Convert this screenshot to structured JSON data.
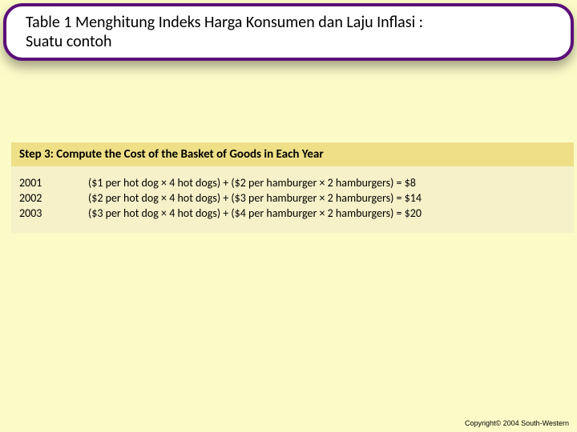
{
  "title": {
    "line1": "Table 1 Menghitung Indeks Harga Konsumen dan Laju Inflasi :",
    "line2": "Suatu contoh"
  },
  "colors": {
    "page_bg": "#fcfbc8",
    "title_border": "#5a1079",
    "title_bg": "#ffffff",
    "step_bg": "#efe088",
    "calc_bg": "#f6f1c9",
    "text": "#000000"
  },
  "step": {
    "label": "Step 3: Compute the Cost of the Basket of Goods in Each Year"
  },
  "rows": [
    {
      "year": "2001",
      "formula": "($1 per hot dog × 4 hot dogs) + ($2 per hamburger × 2 hamburgers) = $8"
    },
    {
      "year": "2002",
      "formula": "($2 per hot dog × 4 hot dogs) + ($3 per hamburger × 2 hamburgers) = $14"
    },
    {
      "year": "2003",
      "formula": "($3 per hot dog × 4 hot dogs) + ($4 per hamburger × 2 hamburgers) = $20"
    }
  ],
  "footer": "Copyright© 2004  South-Western"
}
